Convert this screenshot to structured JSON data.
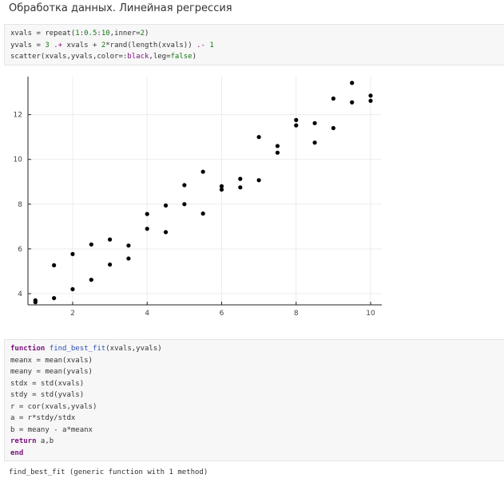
{
  "page": {
    "title": "Обработка данных. Линейная регрессия"
  },
  "cell1": {
    "lines": [
      [
        "xvals = repeat(",
        "1",
        ":",
        "0.5",
        ":",
        "10",
        ",inner=",
        "2",
        ")"
      ],
      [
        "yvals = ",
        "3",
        " ",
        ".+",
        " xvals + ",
        "2",
        "*rand(length(xvals)) ",
        ".-",
        " ",
        "1"
      ],
      [
        "scatter(xvals,yvals,color=",
        ":black",
        ",leg=",
        "false",
        ")"
      ]
    ]
  },
  "cell2": {
    "kw_function": "function",
    "fn_name": "find_best_fit",
    "sig": "(xvals,yvals)",
    "body": [
      "meanx = mean(xvals)",
      "meany = mean(yvals)",
      "stdx = std(xvals)",
      "stdy = std(yvals)",
      "r = cor(xvals,yvals)",
      "a = r*stdy/stdx",
      "b = meany - a*meanx"
    ],
    "kw_return": "return",
    "ret": " a,b",
    "kw_end": "end"
  },
  "output": {
    "text": "find_best_fit (generic function with 1 method)"
  },
  "chart_data": {
    "type": "scatter",
    "legend": false,
    "grid": true,
    "marker_color": "#000000",
    "xlim": [
      0.8,
      10.3
    ],
    "ylim": [
      3.5,
      13.7
    ],
    "xticks": [
      2,
      4,
      6,
      8,
      10
    ],
    "yticks": [
      4,
      6,
      8,
      10,
      12
    ],
    "points": [
      [
        1,
        3.7
      ],
      [
        1,
        3.62
      ],
      [
        1.5,
        3.8
      ],
      [
        1.5,
        5.27
      ],
      [
        2,
        5.77
      ],
      [
        2,
        4.2
      ],
      [
        2.5,
        6.2
      ],
      [
        2.5,
        4.62
      ],
      [
        3,
        6.42
      ],
      [
        3,
        5.3
      ],
      [
        3.5,
        6.15
      ],
      [
        3.5,
        5.57
      ],
      [
        4,
        7.56
      ],
      [
        4,
        6.9
      ],
      [
        4.5,
        7.94
      ],
      [
        4.5,
        6.75
      ],
      [
        5,
        8.85
      ],
      [
        5,
        8.0
      ],
      [
        5.5,
        9.45
      ],
      [
        5.5,
        7.58
      ],
      [
        6,
        8.8
      ],
      [
        6,
        8.65
      ],
      [
        6.5,
        9.13
      ],
      [
        6.5,
        8.75
      ],
      [
        7,
        11.0
      ],
      [
        7,
        9.07
      ],
      [
        7.5,
        10.6
      ],
      [
        7.5,
        10.3
      ],
      [
        8,
        11.76
      ],
      [
        8,
        11.52
      ],
      [
        8.5,
        11.62
      ],
      [
        8.5,
        10.75
      ],
      [
        9,
        12.72
      ],
      [
        9,
        11.4
      ],
      [
        9.5,
        13.42
      ],
      [
        9.5,
        12.55
      ],
      [
        10,
        12.85
      ],
      [
        10,
        12.62
      ]
    ]
  }
}
